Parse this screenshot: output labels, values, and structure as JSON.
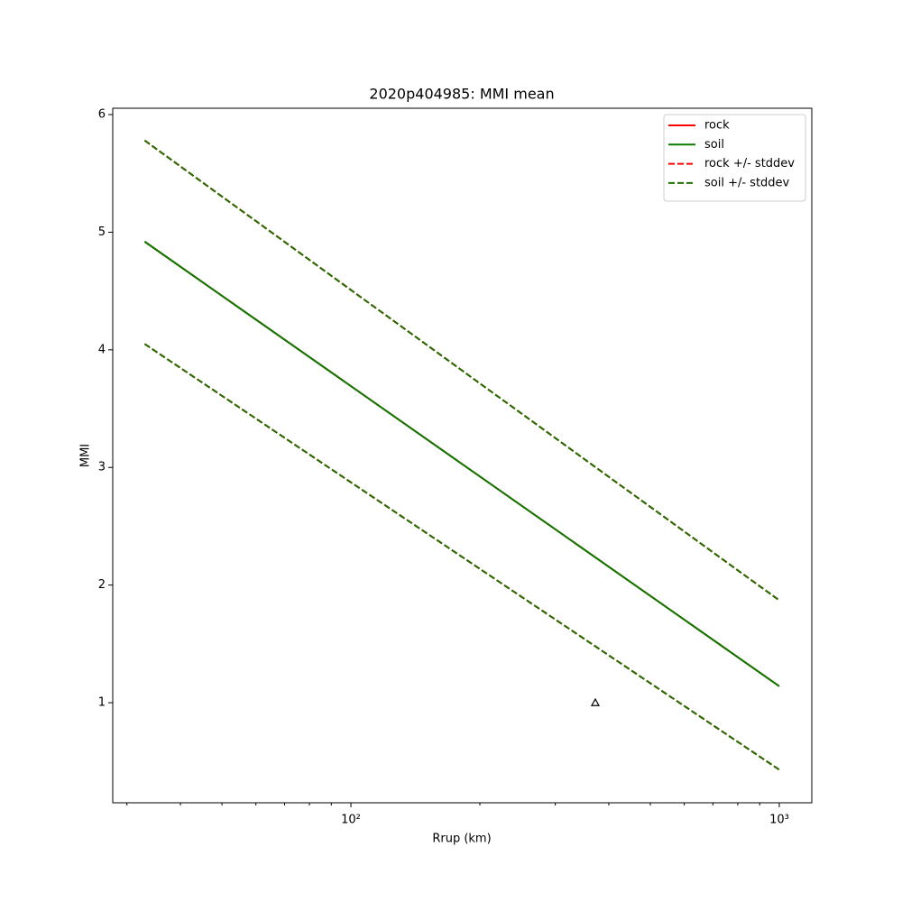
{
  "chart_data": {
    "type": "line",
    "title": "2020p404985: MMI mean",
    "x_label": "Rrup (km)",
    "y_label": "MMI",
    "xscale": "log",
    "xlim": [
      27.8,
      1191
    ],
    "ylim": [
      0.149,
      6.054
    ],
    "xticks": [
      {
        "value": 100,
        "label": "10²"
      },
      {
        "value": 1000,
        "label": "10³"
      }
    ],
    "xminorticks": [
      30,
      40,
      50,
      60,
      70,
      80,
      90,
      200,
      300,
      400,
      500,
      600,
      700,
      800,
      900
    ],
    "yticks": [
      1,
      2,
      3,
      4,
      5,
      6
    ],
    "legend": "upper right",
    "x": [
      33,
      1000
    ],
    "series": [
      {
        "name": "rock",
        "color": "#ff0000",
        "style": "solid",
        "values": [
          4.92,
          1.14
        ]
      },
      {
        "name": "soil",
        "color": "#0b7a00",
        "style": "solid",
        "values": [
          4.92,
          1.14
        ]
      },
      {
        "name": "rock +/- stddev",
        "color": "#ff0000",
        "style": "dashed",
        "upper": [
          5.78,
          1.87
        ],
        "lower": [
          4.05,
          0.43
        ]
      },
      {
        "name": "soil +/- stddev",
        "color": "#1f7000",
        "style": "dashed",
        "upper": [
          5.78,
          1.87
        ],
        "lower": [
          4.05,
          0.43
        ]
      }
    ],
    "points": {
      "x": [
        372
      ],
      "y": [
        1.0
      ],
      "marker": "triangle",
      "color": "#000000"
    }
  }
}
